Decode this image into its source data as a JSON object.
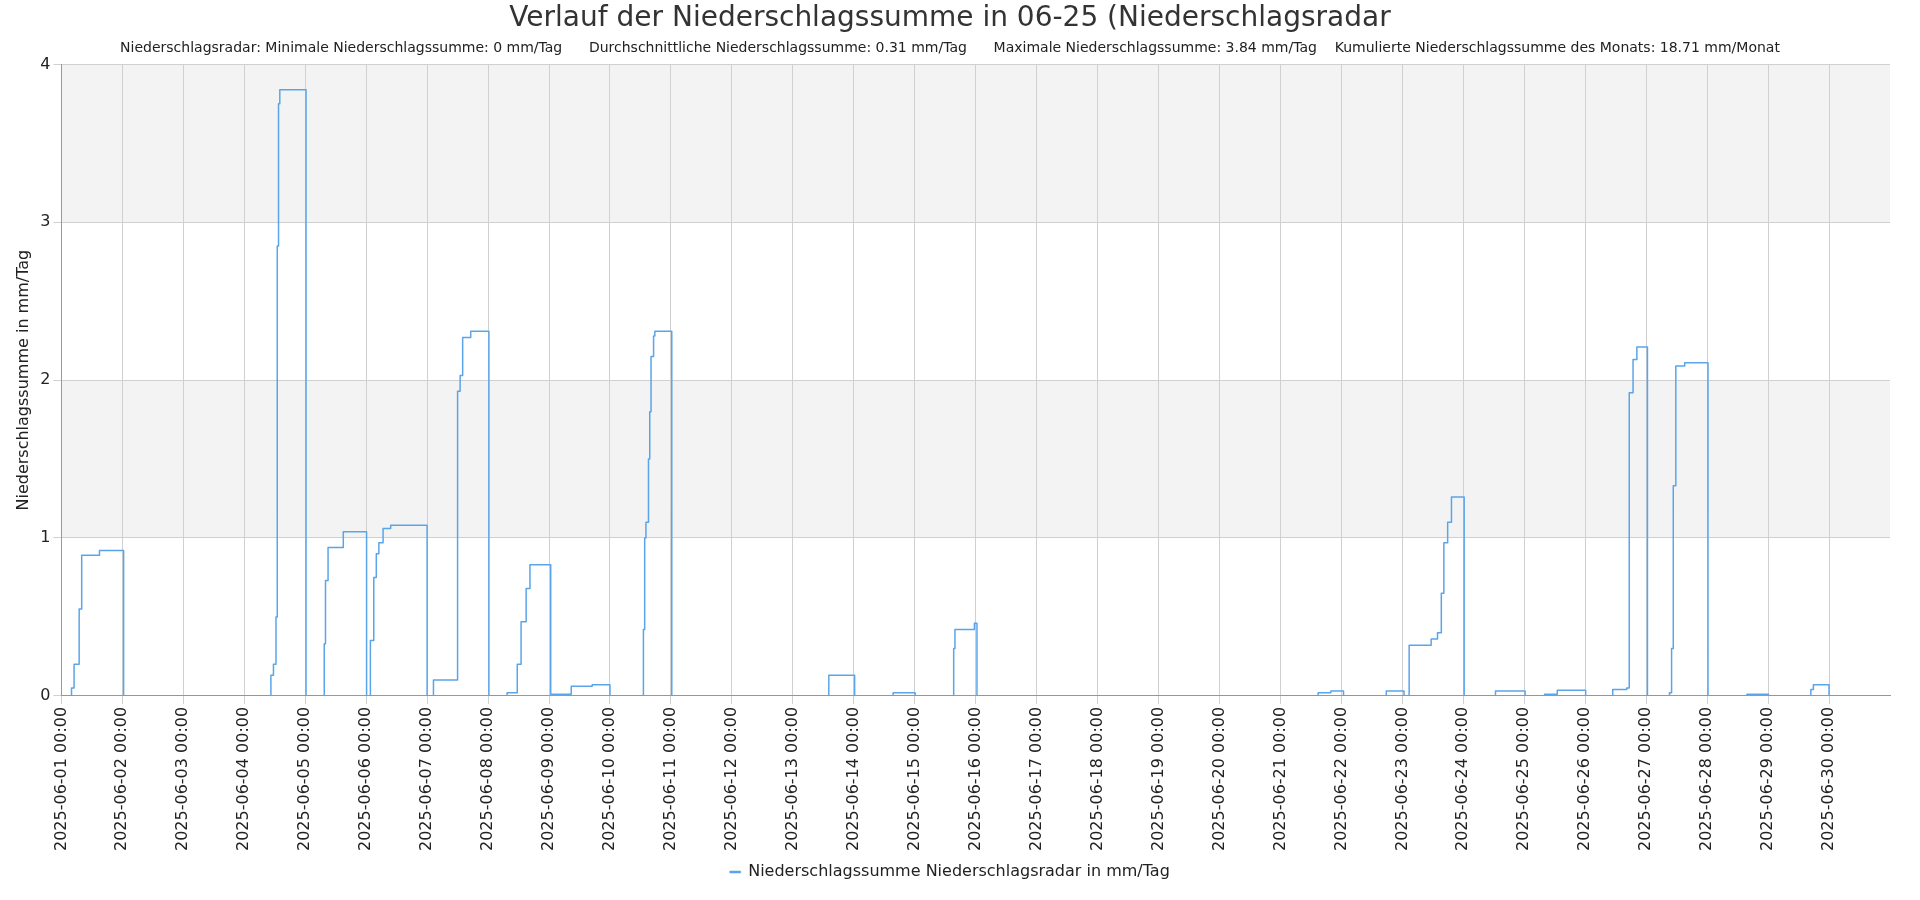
{
  "chart_data": {
    "type": "step",
    "title": "Verlauf der Niederschlagssumme in 06-25 (Niederschlagsradar",
    "subtitle": "Niederschlagsradar: Minimale Niederschlagssumme: 0 mm/Tag      Durchschnittliche Niederschlagssumme: 0.31 mm/Tag      Maximale Niederschlagssumme: 3.84 mm/Tag    Kumulierte Niederschlagssumme des Monats: 18.71 mm/Monat",
    "ylabel": "Niederschlagssumme in mm/Tag",
    "x": [
      "2025-06-01T00:00",
      "2025-06-01T04:00",
      "2025-06-01T05:00",
      "2025-06-01T07:00",
      "2025-06-01T08:00",
      "2025-06-01T15:00",
      "2025-06-02T00:30",
      "2025-06-04T10:30",
      "2025-06-04T11:30",
      "2025-06-04T12:30",
      "2025-06-04T13:00",
      "2025-06-04T13:30",
      "2025-06-04T14:00",
      "2025-06-04T15:30",
      "2025-06-05T00:20",
      "2025-06-05T07:30",
      "2025-06-05T08:00",
      "2025-06-05T09:00",
      "2025-06-05T15:00",
      "2025-06-05T18:00",
      "2025-06-06T00:10",
      "2025-06-06T01:40",
      "2025-06-06T03:00",
      "2025-06-06T04:00",
      "2025-06-06T05:00",
      "2025-06-06T06:40",
      "2025-06-06T09:40",
      "2025-06-06T13:40",
      "2025-06-07T00:00",
      "2025-06-07T02:30",
      "2025-06-07T03:30",
      "2025-06-07T12:00",
      "2025-06-07T13:00",
      "2025-06-07T14:00",
      "2025-06-07T17:10",
      "2025-06-07T20:10",
      "2025-06-08T00:20",
      "2025-06-08T07:30",
      "2025-06-08T11:30",
      "2025-06-08T13:00",
      "2025-06-08T15:00",
      "2025-06-08T16:30",
      "2025-06-08T18:30",
      "2025-06-09T00:40",
      "2025-06-09T08:45",
      "2025-06-09T17:00",
      "2025-06-10T00:00",
      "2025-06-10T13:10",
      "2025-06-10T13:40",
      "2025-06-10T14:10",
      "2025-06-10T15:10",
      "2025-06-10T15:40",
      "2025-06-10T16:10",
      "2025-06-10T17:10",
      "2025-06-10T17:40",
      "2025-06-10T18:40",
      "2025-06-11T00:20",
      "2025-06-13T14:10",
      "2025-06-13T15:10",
      "2025-06-14T00:20",
      "2025-06-14T15:30",
      "2025-06-15T00:10",
      "2025-06-15T15:20",
      "2025-06-15T15:50",
      "2025-06-15T23:30",
      "2025-06-16T00:30",
      "2025-06-21T14:50",
      "2025-06-21T19:50",
      "2025-06-22T00:50",
      "2025-06-22T17:40",
      "2025-06-23T00:40",
      "2025-06-23T02:40",
      "2025-06-23T11:20",
      "2025-06-23T13:50",
      "2025-06-23T15:20",
      "2025-06-23T16:20",
      "2025-06-23T17:50",
      "2025-06-23T19:20",
      "2025-06-24T00:20",
      "2025-06-24T12:40",
      "2025-06-25T00:20",
      "2025-06-25T08:00",
      "2025-06-25T13:00",
      "2025-06-26T00:10",
      "2025-06-26T10:50",
      "2025-06-26T16:20",
      "2025-06-26T17:20",
      "2025-06-26T18:50",
      "2025-06-26T20:20",
      "2025-06-27T00:30",
      "2025-06-27T09:10",
      "2025-06-27T10:00",
      "2025-06-27T10:40",
      "2025-06-27T11:40",
      "2025-06-27T15:10",
      "2025-06-28T00:20",
      "2025-06-28T15:40",
      "2025-06-29T00:10",
      "2025-06-29T16:50",
      "2025-06-29T17:50",
      "2025-06-29T19:20",
      "2025-06-30T00:00",
      "2025-07-01T00:00"
    ],
    "series": [
      {
        "name": "Niederschlagssumme Niederschlagsradar in mm/Tag",
        "color": "#5aa5ea",
        "values": [
          0,
          0.05,
          0.2,
          0.55,
          0.89,
          0.92,
          0,
          0.13,
          0.2,
          0.5,
          2.85,
          3.75,
          3.84,
          3.84,
          0,
          0.33,
          0.73,
          0.94,
          1.04,
          1.04,
          0,
          0.35,
          0.75,
          0.9,
          0.97,
          1.06,
          1.08,
          1.08,
          0,
          0.1,
          0.1,
          1.93,
          2.03,
          2.27,
          2.31,
          2.31,
          0,
          0.02,
          0.2,
          0.47,
          0.68,
          0.83,
          0.83,
          0.01,
          0.06,
          0.07,
          0,
          0.42,
          1.0,
          1.1,
          1.5,
          1.8,
          2.15,
          2.28,
          2.31,
          2.31,
          0,
          0.13,
          0.13,
          0,
          0.02,
          0,
          0.3,
          0.42,
          0.46,
          0,
          0.02,
          0.03,
          0,
          0.03,
          0,
          0.32,
          0.36,
          0.4,
          0.65,
          0.97,
          1.1,
          1.26,
          0,
          0.03,
          0,
          0.01,
          0.035,
          0,
          0.04,
          0.05,
          1.92,
          2.13,
          2.21,
          0,
          0.02,
          0.3,
          1.33,
          2.09,
          2.11,
          0,
          0.01,
          0,
          0.04,
          0.07,
          0.07,
          0,
          0
        ]
      }
    ],
    "xlim": [
      "2025-06-01",
      "2025-07-01"
    ],
    "xticks": [
      {
        "value": "2025-06-01",
        "label": "2025-06-01 00:00"
      },
      {
        "value": "2025-06-02",
        "label": "2025-06-02 00:00"
      },
      {
        "value": "2025-06-03",
        "label": "2025-06-03 00:00"
      },
      {
        "value": "2025-06-04",
        "label": "2025-06-04 00:00"
      },
      {
        "value": "2025-06-05",
        "label": "2025-06-05 00:00"
      },
      {
        "value": "2025-06-06",
        "label": "2025-06-06 00:00"
      },
      {
        "value": "2025-06-07",
        "label": "2025-06-07 00:00"
      },
      {
        "value": "2025-06-08",
        "label": "2025-06-08 00:00"
      },
      {
        "value": "2025-06-09",
        "label": "2025-06-09 00:00"
      },
      {
        "value": "2025-06-10",
        "label": "2025-06-10 00:00"
      },
      {
        "value": "2025-06-11",
        "label": "2025-06-11 00:00"
      },
      {
        "value": "2025-06-12",
        "label": "2025-06-12 00:00"
      },
      {
        "value": "2025-06-13",
        "label": "2025-06-13 00:00"
      },
      {
        "value": "2025-06-14",
        "label": "2025-06-14 00:00"
      },
      {
        "value": "2025-06-15",
        "label": "2025-06-15 00:00"
      },
      {
        "value": "2025-06-16",
        "label": "2025-06-16 00:00"
      },
      {
        "value": "2025-06-17",
        "label": "2025-06-17 00:00"
      },
      {
        "value": "2025-06-18",
        "label": "2025-06-18 00:00"
      },
      {
        "value": "2025-06-19",
        "label": "2025-06-19 00:00"
      },
      {
        "value": "2025-06-20",
        "label": "2025-06-20 00:00"
      },
      {
        "value": "2025-06-21",
        "label": "2025-06-21 00:00"
      },
      {
        "value": "2025-06-22",
        "label": "2025-06-22 00:00"
      },
      {
        "value": "2025-06-23",
        "label": "2025-06-23 00:00"
      },
      {
        "value": "2025-06-24",
        "label": "2025-06-24 00:00"
      },
      {
        "value": "2025-06-25",
        "label": "2025-06-25 00:00"
      },
      {
        "value": "2025-06-26",
        "label": "2025-06-26 00:00"
      },
      {
        "value": "2025-06-27",
        "label": "2025-06-27 00:00"
      },
      {
        "value": "2025-06-28",
        "label": "2025-06-28 00:00"
      },
      {
        "value": "2025-06-29",
        "label": "2025-06-29 00:00"
      },
      {
        "value": "2025-06-30",
        "label": "2025-06-30 00:00"
      }
    ],
    "ylim": [
      0,
      4
    ],
    "yticks": [
      0,
      1,
      2,
      3,
      4
    ],
    "bands": [
      {
        "axis": "y",
        "from": 1,
        "to": 2,
        "color": "#f3f3f3"
      },
      {
        "axis": "y",
        "from": 3,
        "to": 4,
        "color": "#f3f3f3"
      }
    ],
    "grid": true,
    "legend": "bottom",
    "marker": "none",
    "line_style": "solid"
  }
}
